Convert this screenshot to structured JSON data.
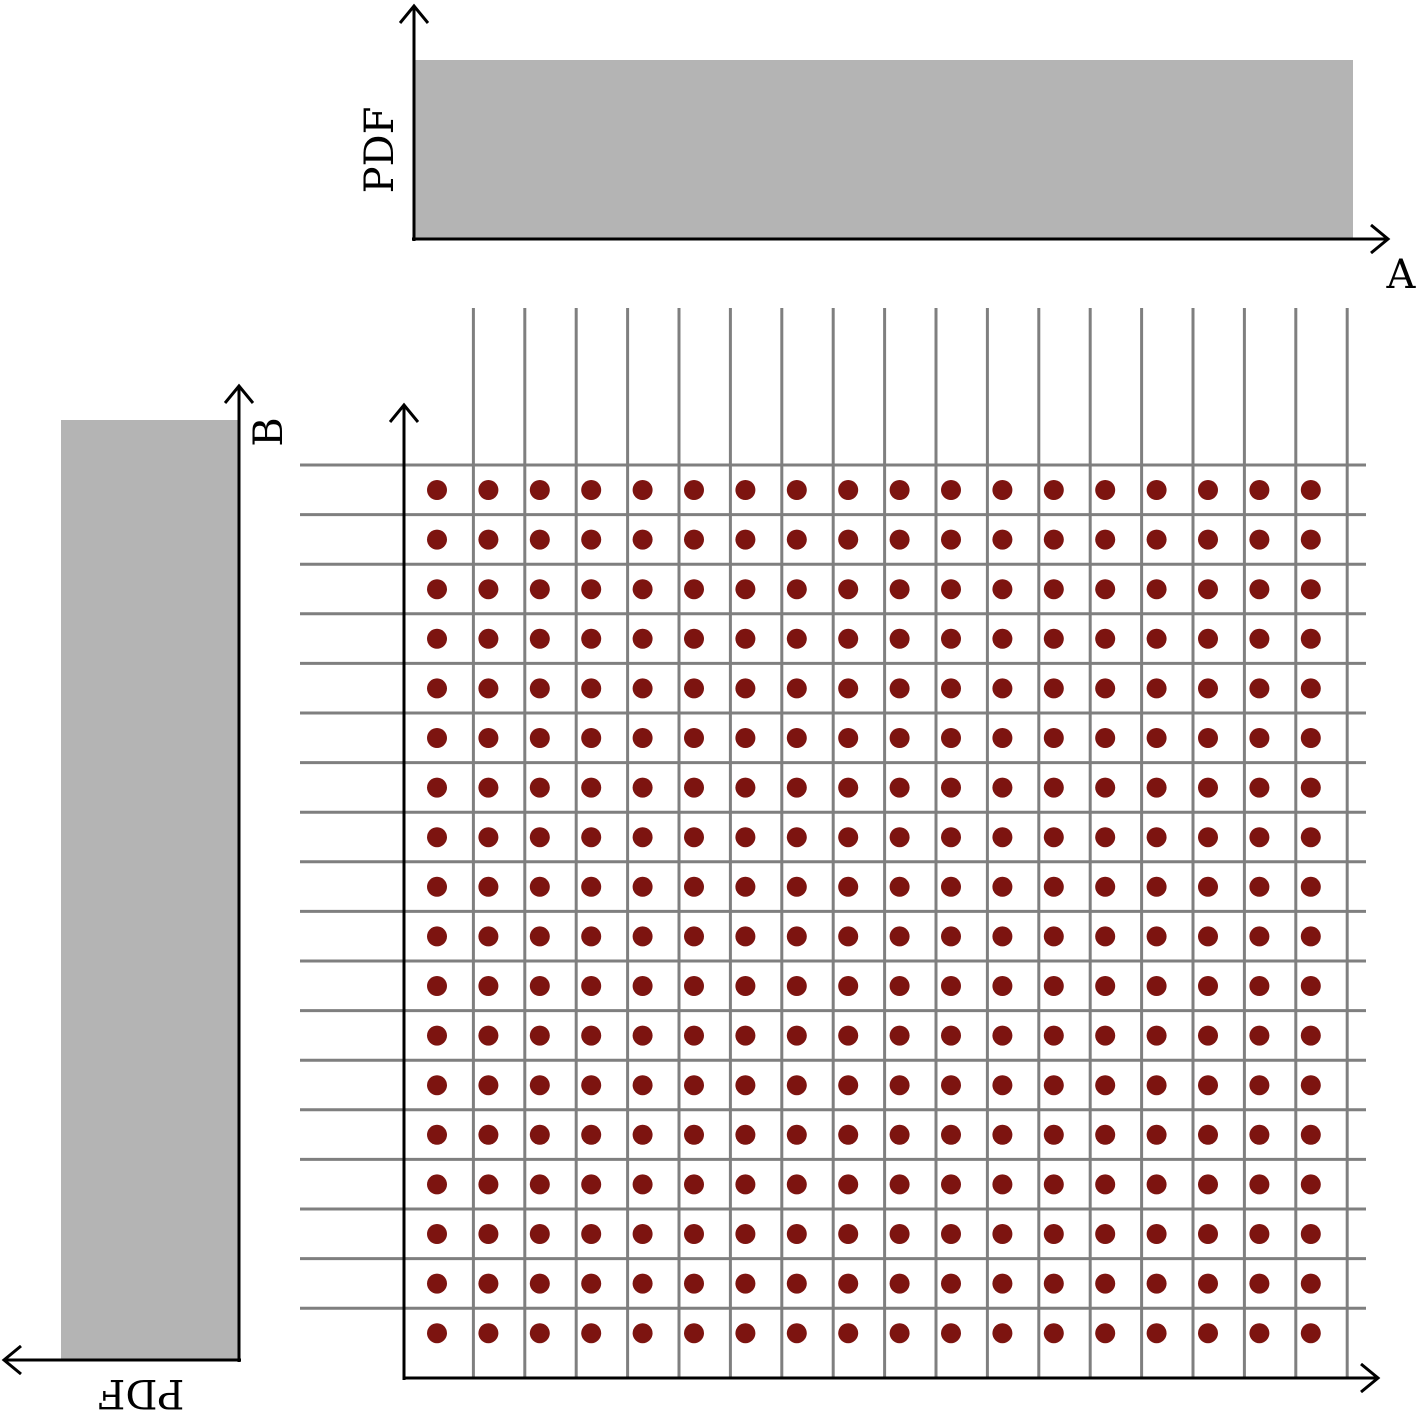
{
  "diagram": {
    "top_panel": {
      "y_axis_label": "PDF",
      "x_axis_label": "A",
      "distribution": "uniform"
    },
    "left_panel": {
      "value_axis_label": "PDF",
      "variable_axis_label": "B",
      "distribution": "uniform"
    },
    "grid": {
      "columns": 18,
      "rows": 18,
      "point_count": 324
    },
    "colors": {
      "pdf_fill": "#b4b4b4",
      "grid_line": "#7f7f7f",
      "sample_point": "#7d1410",
      "axis": "#000000"
    }
  }
}
